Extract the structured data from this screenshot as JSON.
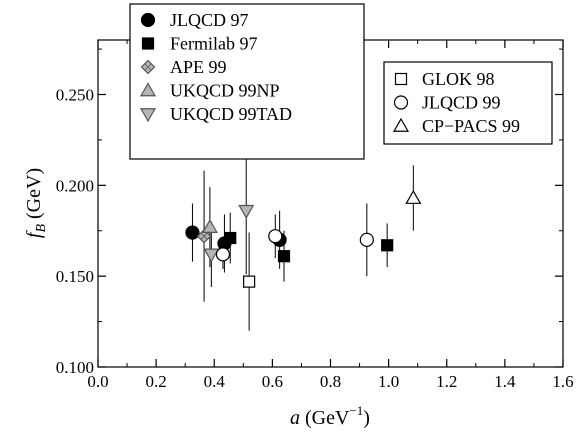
{
  "chart_data": {
    "type": "scatter",
    "xlabel": {
      "var": "a",
      "unit_prefix": "(GeV",
      "exponent": "−1",
      "unit_suffix": ")"
    },
    "ylabel": {
      "var": "f",
      "sub": "B",
      "unit": "(GeV)"
    },
    "xlim": [
      0.0,
      1.6
    ],
    "ylim": [
      0.1,
      0.28
    ],
    "xticks": [
      0.0,
      0.2,
      0.4,
      0.6,
      0.8,
      1.0,
      1.2,
      1.4,
      1.6
    ],
    "xtick_labels": [
      "0.0",
      "0.2",
      "0.4",
      "0.6",
      "0.8",
      "1.0",
      "1.2",
      "1.4",
      "1.6"
    ],
    "yticks": [
      0.1,
      0.15,
      0.2,
      0.25
    ],
    "ytick_labels": [
      "0.100",
      "0.150",
      "0.200",
      "0.250"
    ],
    "grid": false,
    "series": [
      {
        "name": "JLQCD 97",
        "marker": "circle-filled",
        "points": [
          {
            "x": 0.325,
            "y": 0.174,
            "err": 0.016
          },
          {
            "x": 0.435,
            "y": 0.168,
            "err": 0.016
          },
          {
            "x": 0.625,
            "y": 0.17,
            "err": 0.016
          }
        ]
      },
      {
        "name": "Fermilab 97",
        "marker": "square-filled",
        "points": [
          {
            "x": 0.455,
            "y": 0.171,
            "err": 0.014
          },
          {
            "x": 0.64,
            "y": 0.161,
            "err": 0.014
          },
          {
            "x": 0.995,
            "y": 0.167,
            "err": 0.012
          }
        ]
      },
      {
        "name": "APE 99",
        "marker": "diamond-gray",
        "points": [
          {
            "x": 0.365,
            "y": 0.172,
            "err": 0.036
          }
        ]
      },
      {
        "name": "UKQCD 99NP",
        "marker": "triangle-up-gray",
        "points": [
          {
            "x": 0.385,
            "y": 0.177,
            "err": 0.022
          }
        ]
      },
      {
        "name": "UKQCD 99TAD",
        "marker": "triangle-down-gray",
        "points": [
          {
            "x": 0.39,
            "y": 0.162,
            "err": 0.018
          },
          {
            "x": 0.51,
            "y": 0.186,
            "err": 0.035
          }
        ]
      },
      {
        "name": "GLOK 98",
        "marker": "square-open",
        "points": [
          {
            "x": 0.52,
            "y": 0.147,
            "err": 0.027
          }
        ]
      },
      {
        "name": "JLQCD 99",
        "marker": "circle-open",
        "points": [
          {
            "x": 0.43,
            "y": 0.162,
            "err": 0.008
          },
          {
            "x": 0.61,
            "y": 0.172,
            "err": 0.012
          },
          {
            "x": 0.925,
            "y": 0.17,
            "err": 0.02
          }
        ]
      },
      {
        "name": "CP−PACS 99",
        "marker": "triangle-up-open",
        "points": [
          {
            "x": 1.085,
            "y": 0.193,
            "err": 0.018
          }
        ]
      }
    ],
    "legends": [
      {
        "position": "top-left",
        "entries": [
          "JLQCD 97",
          "Fermilab 97",
          "APE 99",
          "UKQCD 99NP",
          "UKQCD 99TAD"
        ]
      },
      {
        "position": "top-right",
        "entries": [
          "GLOK 98",
          "JLQCD 99",
          "CP−PACS 99"
        ]
      }
    ]
  }
}
